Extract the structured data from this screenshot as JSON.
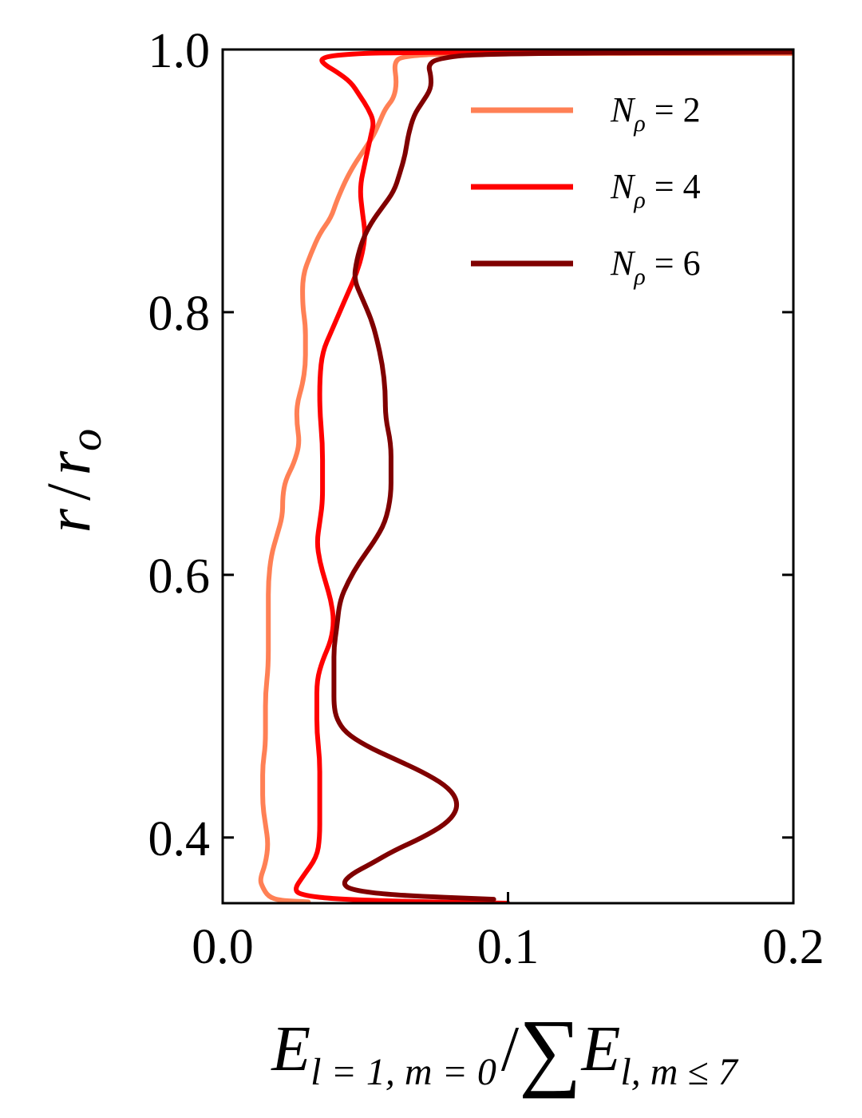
{
  "chart_data": {
    "type": "line",
    "xlabel": {
      "main": "E",
      "sub": "l = 1, m = 0",
      "slash": "/",
      "sum": "∑",
      "main2": "E",
      "sub2": "l, m ≤ 7"
    },
    "ylabel": "r / r_o",
    "ylabel_main": "r",
    "ylabel_slash": "/",
    "ylabel_r": "r",
    "ylabel_sub": "o",
    "xlim": [
      0.0,
      0.2
    ],
    "ylim": [
      0.35,
      1.0
    ],
    "xticks": [
      0.0,
      0.1,
      0.2
    ],
    "xtick_labels": [
      "0.0",
      "0.1",
      "0.2"
    ],
    "yticks": [
      0.4,
      0.6,
      0.8,
      1.0
    ],
    "ytick_labels": [
      "0.4",
      "0.6",
      "0.8",
      "1.0"
    ],
    "grid": false,
    "legend_position": "upper-right",
    "series": [
      {
        "name": "N_ρ = 2",
        "label_main": "N",
        "label_sub": "ρ",
        "label_rest": " = 2",
        "color": "#ff8055",
        "points": [
          [
            0.03,
            0.351
          ],
          [
            0.02,
            0.352
          ],
          [
            0.016,
            0.355
          ],
          [
            0.014,
            0.362
          ],
          [
            0.013,
            0.368
          ],
          [
            0.015,
            0.38
          ],
          [
            0.016,
            0.395
          ],
          [
            0.015,
            0.41
          ],
          [
            0.014,
            0.425
          ],
          [
            0.014,
            0.44
          ],
          [
            0.014,
            0.455
          ],
          [
            0.015,
            0.47
          ],
          [
            0.015,
            0.49
          ],
          [
            0.015,
            0.51
          ],
          [
            0.016,
            0.53
          ],
          [
            0.016,
            0.555
          ],
          [
            0.016,
            0.575
          ],
          [
            0.016,
            0.595
          ],
          [
            0.017,
            0.615
          ],
          [
            0.019,
            0.63
          ],
          [
            0.021,
            0.645
          ],
          [
            0.021,
            0.66
          ],
          [
            0.022,
            0.672
          ],
          [
            0.025,
            0.685
          ],
          [
            0.027,
            0.7
          ],
          [
            0.026,
            0.715
          ],
          [
            0.026,
            0.73
          ],
          [
            0.028,
            0.745
          ],
          [
            0.029,
            0.76
          ],
          [
            0.029,
            0.775
          ],
          [
            0.029,
            0.79
          ],
          [
            0.028,
            0.805
          ],
          [
            0.028,
            0.828
          ],
          [
            0.031,
            0.845
          ],
          [
            0.034,
            0.86
          ],
          [
            0.038,
            0.872
          ],
          [
            0.04,
            0.885
          ],
          [
            0.043,
            0.9
          ],
          [
            0.046,
            0.912
          ],
          [
            0.05,
            0.925
          ],
          [
            0.053,
            0.935
          ],
          [
            0.055,
            0.945
          ],
          [
            0.057,
            0.955
          ],
          [
            0.06,
            0.963
          ],
          [
            0.061,
            0.975
          ],
          [
            0.06,
            0.99
          ],
          [
            0.063,
            0.995
          ],
          [
            0.08,
            0.997
          ],
          [
            0.2,
            0.997
          ]
        ]
      },
      {
        "name": "N_ρ = 4",
        "label_main": "N",
        "label_sub": "ρ",
        "label_rest": " = 4",
        "color": "#ff0000",
        "points": [
          [
            0.1,
            0.35
          ],
          [
            0.07,
            0.351
          ],
          [
            0.04,
            0.353
          ],
          [
            0.028,
            0.356
          ],
          [
            0.025,
            0.36
          ],
          [
            0.028,
            0.37
          ],
          [
            0.033,
            0.385
          ],
          [
            0.034,
            0.4
          ],
          [
            0.034,
            0.42
          ],
          [
            0.034,
            0.44
          ],
          [
            0.034,
            0.46
          ],
          [
            0.033,
            0.48
          ],
          [
            0.033,
            0.5
          ],
          [
            0.033,
            0.52
          ],
          [
            0.035,
            0.535
          ],
          [
            0.038,
            0.55
          ],
          [
            0.039,
            0.565
          ],
          [
            0.038,
            0.58
          ],
          [
            0.036,
            0.595
          ],
          [
            0.034,
            0.61
          ],
          [
            0.033,
            0.625
          ],
          [
            0.034,
            0.64
          ],
          [
            0.035,
            0.655
          ],
          [
            0.035,
            0.675
          ],
          [
            0.035,
            0.7
          ],
          [
            0.034,
            0.725
          ],
          [
            0.034,
            0.75
          ],
          [
            0.035,
            0.77
          ],
          [
            0.038,
            0.785
          ],
          [
            0.041,
            0.8
          ],
          [
            0.044,
            0.815
          ],
          [
            0.047,
            0.83
          ],
          [
            0.049,
            0.845
          ],
          [
            0.05,
            0.86
          ],
          [
            0.049,
            0.875
          ],
          [
            0.048,
            0.895
          ],
          [
            0.05,
            0.915
          ],
          [
            0.052,
            0.935
          ],
          [
            0.053,
            0.945
          ],
          [
            0.051,
            0.955
          ],
          [
            0.048,
            0.965
          ],
          [
            0.045,
            0.975
          ],
          [
            0.04,
            0.983
          ],
          [
            0.036,
            0.988
          ],
          [
            0.034,
            0.993
          ],
          [
            0.04,
            0.996
          ],
          [
            0.06,
            0.998
          ],
          [
            0.2,
            0.998
          ]
        ]
      },
      {
        "name": "N_ρ = 6",
        "label_main": "N",
        "label_sub": "ρ",
        "label_rest": " = 6",
        "color": "#800000",
        "points": [
          [
            0.095,
            0.353
          ],
          [
            0.06,
            0.356
          ],
          [
            0.045,
            0.36
          ],
          [
            0.042,
            0.365
          ],
          [
            0.045,
            0.372
          ],
          [
            0.052,
            0.38
          ],
          [
            0.06,
            0.39
          ],
          [
            0.07,
            0.4
          ],
          [
            0.078,
            0.41
          ],
          [
            0.082,
            0.42
          ],
          [
            0.082,
            0.43
          ],
          [
            0.078,
            0.44
          ],
          [
            0.07,
            0.45
          ],
          [
            0.06,
            0.46
          ],
          [
            0.05,
            0.47
          ],
          [
            0.043,
            0.48
          ],
          [
            0.04,
            0.49
          ],
          [
            0.039,
            0.5
          ],
          [
            0.039,
            0.515
          ],
          [
            0.039,
            0.53
          ],
          [
            0.039,
            0.545
          ],
          [
            0.04,
            0.56
          ],
          [
            0.041,
            0.58
          ],
          [
            0.044,
            0.595
          ],
          [
            0.048,
            0.61
          ],
          [
            0.053,
            0.625
          ],
          [
            0.057,
            0.64
          ],
          [
            0.059,
            0.66
          ],
          [
            0.059,
            0.68
          ],
          [
            0.059,
            0.7
          ],
          [
            0.057,
            0.72
          ],
          [
            0.057,
            0.74
          ],
          [
            0.056,
            0.76
          ],
          [
            0.054,
            0.78
          ],
          [
            0.052,
            0.795
          ],
          [
            0.049,
            0.81
          ],
          [
            0.046,
            0.825
          ],
          [
            0.047,
            0.84
          ],
          [
            0.049,
            0.855
          ],
          [
            0.052,
            0.868
          ],
          [
            0.056,
            0.88
          ],
          [
            0.06,
            0.892
          ],
          [
            0.062,
            0.905
          ],
          [
            0.064,
            0.92
          ],
          [
            0.065,
            0.935
          ],
          [
            0.067,
            0.95
          ],
          [
            0.07,
            0.96
          ],
          [
            0.073,
            0.97
          ],
          [
            0.073,
            0.98
          ],
          [
            0.072,
            0.988
          ],
          [
            0.075,
            0.993
          ],
          [
            0.09,
            0.997
          ],
          [
            0.2,
            0.998
          ]
        ]
      }
    ]
  }
}
